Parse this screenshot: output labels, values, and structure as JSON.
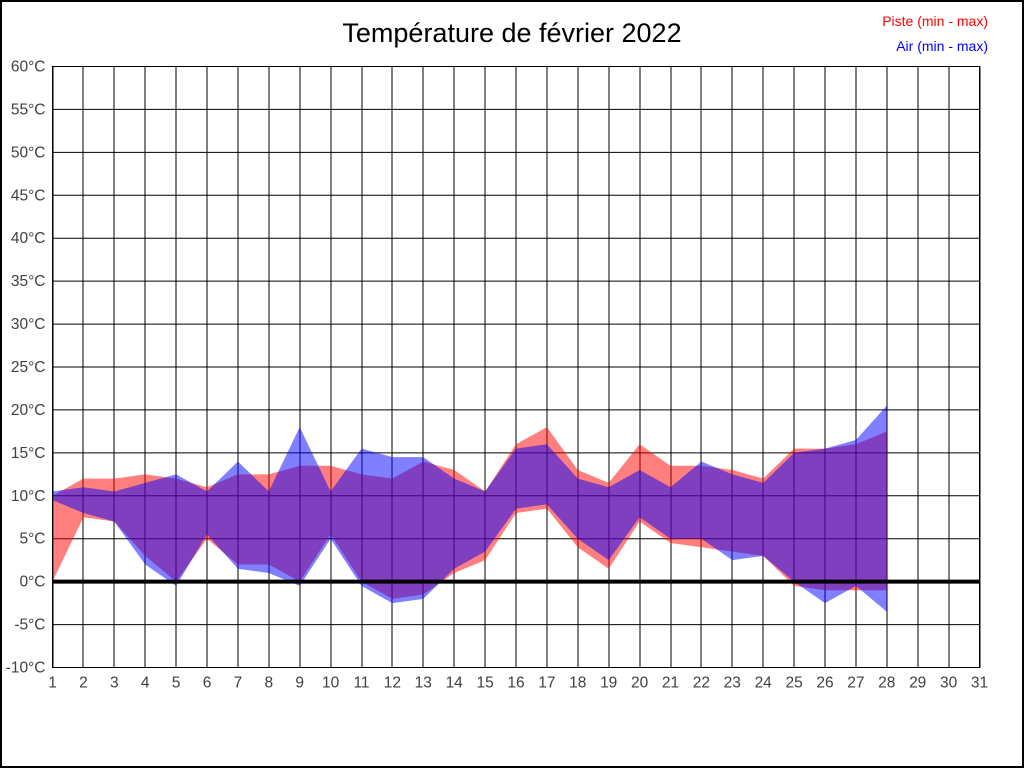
{
  "page": {
    "title": "Température de février 2022"
  },
  "legend": {
    "position": "top-right",
    "items": [
      {
        "label": "Piste (min - max)",
        "color": "#FF0000"
      },
      {
        "label": "Air (min - max)",
        "color": "#0000FF"
      }
    ]
  },
  "chart_data": {
    "type": "area",
    "variant": "min-max-range-bands",
    "title": "Température de février 2022",
    "x_unit": "day of February 2022",
    "y_unit": "°C",
    "x": [
      1,
      2,
      3,
      4,
      5,
      6,
      7,
      8,
      9,
      10,
      11,
      12,
      13,
      14,
      15,
      16,
      17,
      18,
      19,
      20,
      21,
      22,
      23,
      24,
      25,
      26,
      27,
      28
    ],
    "series": [
      {
        "name": "Piste (min - max)",
        "color": "#FF0000",
        "fill_opacity": 0.5,
        "min": [
          0,
          7.5,
          7,
          3,
          0,
          5,
          2,
          2,
          0,
          5.5,
          0,
          -2,
          -1.5,
          1,
          2.5,
          8,
          8.5,
          4,
          1.5,
          7,
          4.5,
          4,
          3.5,
          3,
          -0.5,
          -1,
          -1,
          -1
        ],
        "max": [
          10,
          12,
          12,
          12.5,
          12,
          11,
          12.5,
          12.5,
          13.5,
          13.5,
          12.5,
          12,
          14,
          13,
          10.5,
          16,
          18,
          13,
          11.5,
          16,
          13.5,
          13.5,
          13,
          12,
          15.5,
          15.5,
          16,
          17.5
        ]
      },
      {
        "name": "Air (min - max)",
        "color": "#0000FF",
        "fill_opacity": 0.5,
        "min": [
          9.5,
          8,
          7,
          2,
          -0.5,
          5.5,
          1.5,
          1,
          -0.5,
          5,
          -0.5,
          -2.5,
          -2,
          1.5,
          3.5,
          8.5,
          9,
          5,
          2.5,
          7.5,
          5,
          5,
          2.5,
          3,
          0,
          -2.5,
          -0.5,
          -3.5
        ],
        "max": [
          10.5,
          11,
          10.5,
          11.5,
          12.5,
          10.5,
          14,
          10.5,
          18,
          10.5,
          15.5,
          14.5,
          14.5,
          12,
          10.5,
          15.5,
          16,
          12,
          11,
          13,
          11,
          14,
          12.5,
          11.5,
          15,
          15.5,
          16.5,
          20.5
        ]
      }
    ],
    "xlim": [
      1,
      31
    ],
    "ylim": [
      -10,
      60
    ],
    "x_ticks": [
      1,
      2,
      3,
      4,
      5,
      6,
      7,
      8,
      9,
      10,
      11,
      12,
      13,
      14,
      15,
      16,
      17,
      18,
      19,
      20,
      21,
      22,
      23,
      24,
      25,
      26,
      27,
      28,
      29,
      30,
      31
    ],
    "y_tick_values": [
      60,
      55,
      50,
      45,
      40,
      35,
      30,
      25,
      20,
      15,
      10,
      5,
      0,
      -5,
      -10
    ],
    "y_tick_labels": [
      "60°C",
      "55°C",
      "50°C",
      "45°C",
      "40°C",
      "35°C",
      "30°C",
      "25°C",
      "20°C",
      "15°C",
      "10°C",
      "5°C",
      "0°C",
      "-5°C",
      "-10°C"
    ],
    "grid": "on",
    "grid_color": "#000000",
    "zero_line": "thick black line at 0°C",
    "legend_position": "top-right"
  }
}
